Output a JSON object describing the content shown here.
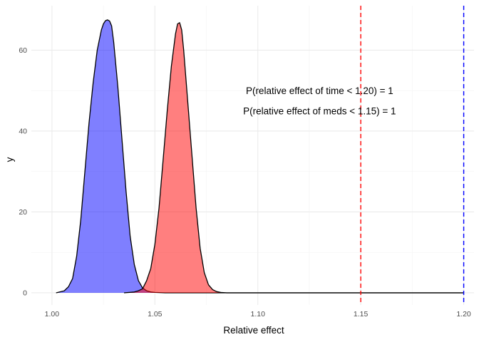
{
  "chart_data": {
    "type": "area",
    "title": "",
    "xlabel": "Relative effect",
    "ylabel": "y",
    "xlim": [
      0.99,
      1.205
    ],
    "ylim": [
      -3,
      71
    ],
    "x_ticks": [
      1.0,
      1.05,
      1.1,
      1.15,
      1.2
    ],
    "x_tick_labels": [
      "1.00",
      "1.05",
      "1.10",
      "1.15",
      "1.20"
    ],
    "y_ticks": [
      0,
      20,
      40,
      60
    ],
    "y_tick_labels": [
      "0",
      "20",
      "40",
      "60"
    ],
    "grid": true,
    "legend": "none",
    "series": [
      {
        "color": "#0000ff",
        "fill_opacity": 0.5,
        "x": [
          1.002,
          1.006,
          1.008,
          1.01,
          1.012,
          1.014,
          1.016,
          1.018,
          1.02,
          1.022,
          1.024,
          1.025,
          1.026,
          1.027,
          1.028,
          1.029,
          1.03,
          1.032,
          1.034,
          1.036,
          1.038,
          1.04,
          1.042,
          1.044,
          1.046,
          1.048,
          1.05,
          1.055,
          1.06,
          1.2
        ],
        "y": [
          0,
          0.5,
          1.5,
          3.5,
          9,
          18,
          30,
          42,
          52,
          60,
          65,
          66.5,
          67.3,
          67.5,
          67.2,
          66,
          62,
          51,
          38,
          25,
          14,
          7,
          3,
          1.2,
          0.5,
          0.2,
          0.1,
          0,
          0,
          0
        ]
      },
      {
        "color": "#ff0000",
        "fill_opacity": 0.5,
        "x": [
          1.035,
          1.04,
          1.042,
          1.044,
          1.046,
          1.048,
          1.05,
          1.052,
          1.054,
          1.056,
          1.058,
          1.059,
          1.06,
          1.061,
          1.062,
          1.063,
          1.064,
          1.066,
          1.068,
          1.07,
          1.072,
          1.074,
          1.076,
          1.078,
          1.08,
          1.082,
          1.085,
          1.09,
          1.2
        ],
        "y": [
          0,
          0.2,
          0.5,
          1,
          3,
          6,
          12,
          21,
          33,
          45,
          56,
          60,
          64,
          66.5,
          66.8,
          65,
          60,
          47,
          34,
          21,
          11,
          5,
          2,
          0.8,
          0.3,
          0.1,
          0,
          0,
          0
        ]
      }
    ],
    "reference_lines": [
      {
        "x": 1.15,
        "color": "#ff0000",
        "style": "dashed"
      },
      {
        "x": 1.2,
        "color": "#0000ff",
        "style": "dashed"
      }
    ],
    "annotations": [
      {
        "text": "P(relative effect of time < 1.20) =  1",
        "x": 1.13,
        "y": 50
      },
      {
        "text": "P(relative effect of meds < 1.15) =  1",
        "x": 1.13,
        "y": 45
      }
    ]
  }
}
